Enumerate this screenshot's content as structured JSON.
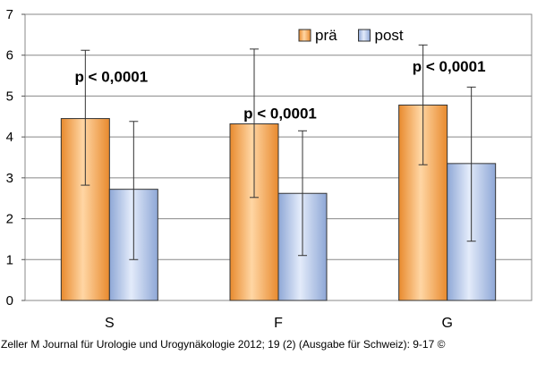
{
  "chart_data": {
    "type": "bar",
    "categories": [
      "S",
      "F",
      "G"
    ],
    "series": [
      {
        "name": "prä",
        "values": [
          4.45,
          4.32,
          4.78
        ],
        "err_low": [
          2.82,
          2.52,
          3.32
        ],
        "err_high": [
          6.12,
          6.15,
          6.25
        ],
        "color": "#F5A14A"
      },
      {
        "name": "post",
        "values": [
          2.72,
          2.62,
          3.35
        ],
        "err_low": [
          1.0,
          1.1,
          1.45
        ],
        "err_high": [
          4.38,
          4.15,
          5.22
        ],
        "color": "#A9BFE6"
      }
    ],
    "ylim": [
      0,
      7
    ],
    "yticks": [
      0,
      1,
      2,
      3,
      4,
      5,
      6,
      7
    ],
    "grid": true,
    "legend_position": "top-right",
    "annotations": [
      {
        "text": "p < 0,0001",
        "category": "S",
        "y": 5.35
      },
      {
        "text": "p < 0,0001",
        "category": "F",
        "y": 4.45
      },
      {
        "text": "p < 0,0001",
        "category": "G",
        "y": 5.6
      }
    ]
  },
  "caption": "Zeller M Journal für Urologie und Urogynäkologie 2012; 19 (2) (Ausgabe für Schweiz): 9-17 ©"
}
